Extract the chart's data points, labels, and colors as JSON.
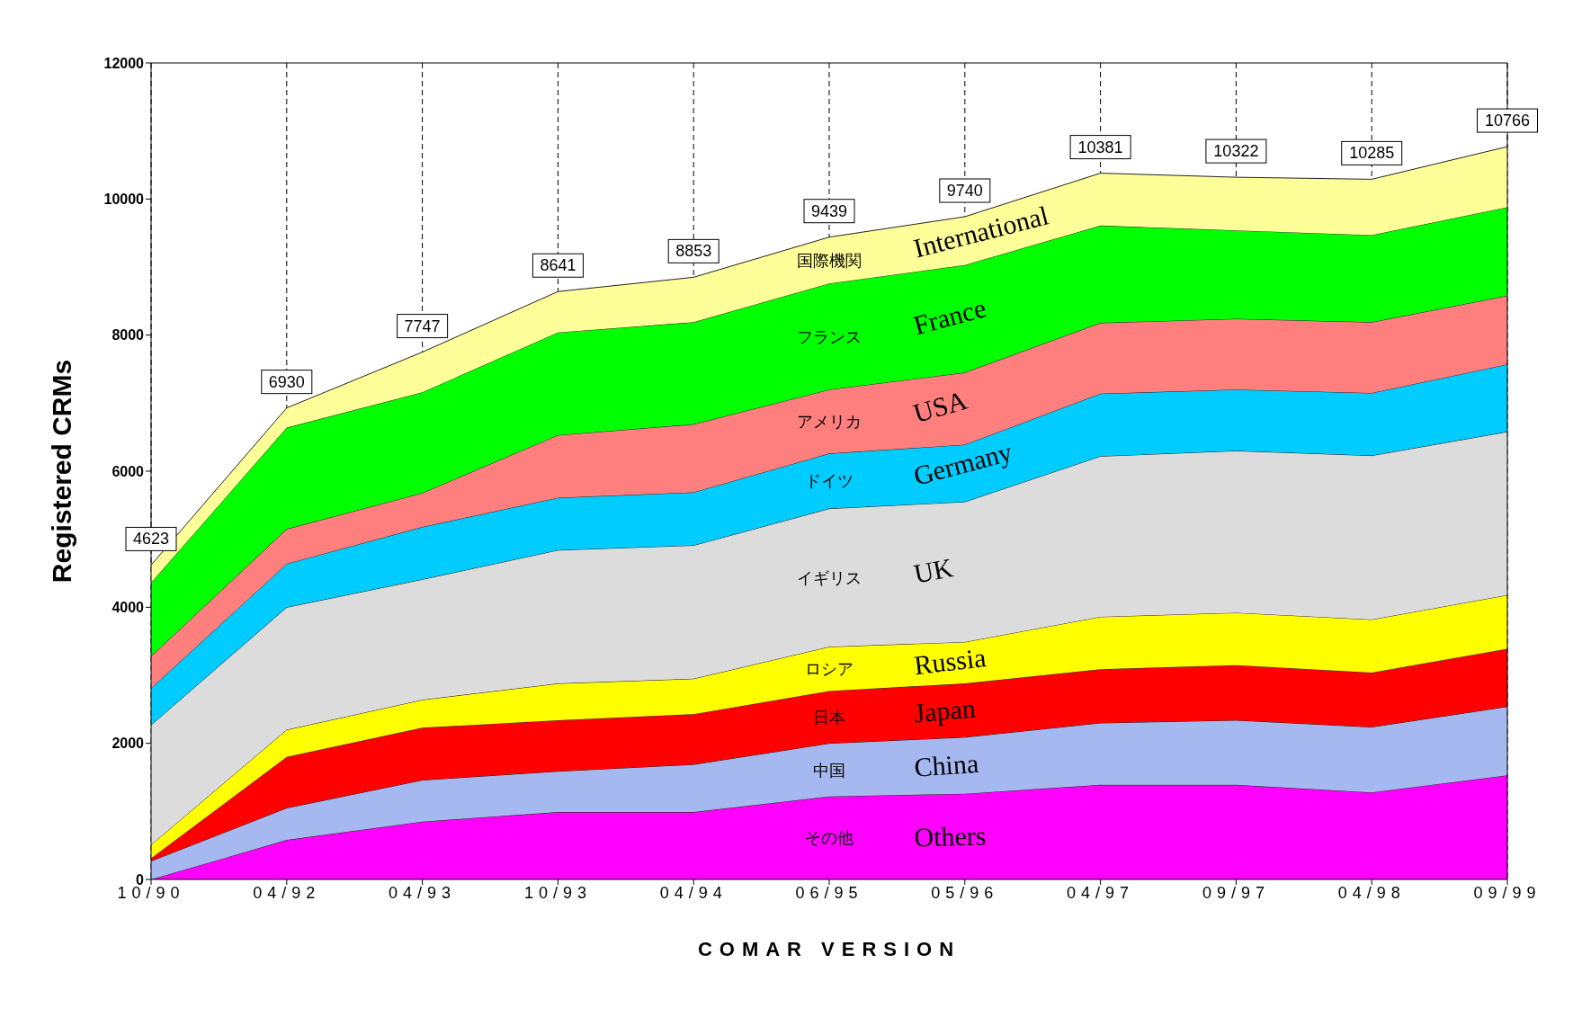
{
  "chart_data": {
    "type": "area",
    "stacked": true,
    "xlabel": "COMAR VERSION",
    "ylabel": "Registered CRMs",
    "categories": [
      "10/90",
      "04/92",
      "04/93",
      "10/93",
      "04/94",
      "06/95",
      "05/96",
      "04/97",
      "09/97",
      "04/98",
      "09/99"
    ],
    "ylim": [
      0,
      12000
    ],
    "yticks": [
      0,
      2000,
      4000,
      6000,
      8000,
      10000,
      12000
    ],
    "grid": "x",
    "series": [
      {
        "name": "Others",
        "color": "#ff00ff",
        "values": [
          0,
          580,
          850,
          990,
          990,
          1220,
          1260,
          1390,
          1390,
          1280,
          1530
        ]
      },
      {
        "name": "China",
        "color": "#a6b8f0",
        "values": [
          270,
          470,
          610,
          600,
          700,
          780,
          830,
          910,
          950,
          960,
          1010
        ]
      },
      {
        "name": "Japan",
        "color": "#ff0000",
        "values": [
          40,
          750,
          770,
          750,
          740,
          770,
          790,
          790,
          810,
          800,
          850
        ]
      },
      {
        "name": "Russia",
        "color": "#ffff00",
        "values": [
          200,
          400,
          410,
          540,
          520,
          650,
          610,
          770,
          770,
          780,
          790
        ]
      },
      {
        "name": "UK",
        "color": "#dcdcdc",
        "values": [
          1760,
          1800,
          1770,
          1960,
          1960,
          2030,
          2060,
          2360,
          2380,
          2410,
          2400
        ]
      },
      {
        "name": "Germany",
        "color": "#00ccff",
        "values": [
          540,
          640,
          770,
          770,
          780,
          810,
          840,
          920,
          900,
          920,
          990
        ]
      },
      {
        "name": "USA",
        "color": "#ff7f7f",
        "values": [
          470,
          510,
          500,
          920,
          1000,
          940,
          1060,
          1040,
          1040,
          1040,
          1010
        ]
      },
      {
        "name": "France",
        "color": "#00ff00",
        "values": [
          1080,
          1490,
          1480,
          1510,
          1500,
          1560,
          1580,
          1430,
          1300,
          1280,
          1300
        ]
      },
      {
        "name": "International",
        "color": "#ffff99",
        "values": [
          260,
          290,
          590,
          600,
          660,
          680,
          710,
          770,
          780,
          820,
          890
        ]
      }
    ],
    "totals": [
      "4623",
      "6930",
      "7747",
      "8641",
      "8853",
      "9439",
      "9740",
      "10381",
      "10322",
      "10285",
      "10766"
    ],
    "annotations": [
      "その他",
      "中国",
      "日本",
      "ロシア",
      "イギリス",
      "ドイツ",
      "アメリカ",
      "フランス",
      "国際機関"
    ]
  }
}
